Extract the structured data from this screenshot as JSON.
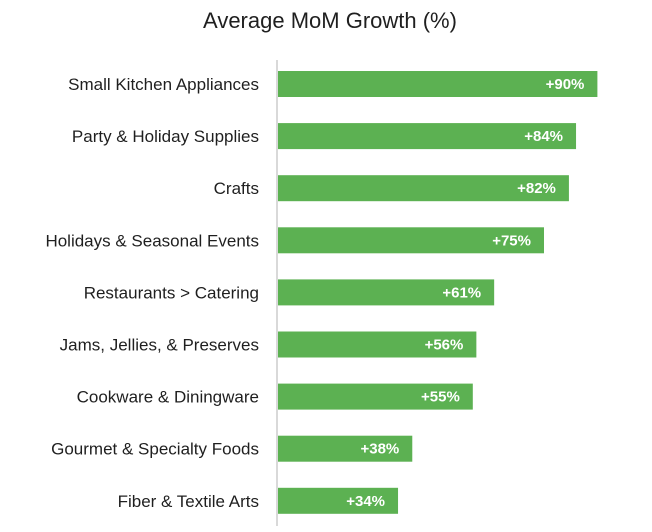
{
  "chart_data": {
    "type": "bar",
    "orientation": "horizontal",
    "title": "Average MoM Growth (%)",
    "xlabel": "",
    "ylabel": "",
    "categories": [
      "Small Kitchen Appliances",
      "Party & Holiday Supplies",
      "Crafts",
      "Holidays & Seasonal Events",
      "Restaurants > Catering",
      "Jams, Jellies, & Preserves",
      "Cookware & Diningware",
      "Gourmet & Specialty Foods",
      "Fiber & Textile Arts"
    ],
    "values": [
      90,
      84,
      82,
      75,
      61,
      56,
      55,
      38,
      34
    ],
    "data_labels": [
      "+90%",
      "+84%",
      "+82%",
      "+75%",
      "+61%",
      "+56%",
      "+55%",
      "+38%",
      "+34%"
    ],
    "xlim": [
      0,
      100
    ],
    "grid": false,
    "legend": "none",
    "bar_color": "#5cb152",
    "label_color": "#ffffff",
    "axis_color": "#d9d9d9"
  }
}
